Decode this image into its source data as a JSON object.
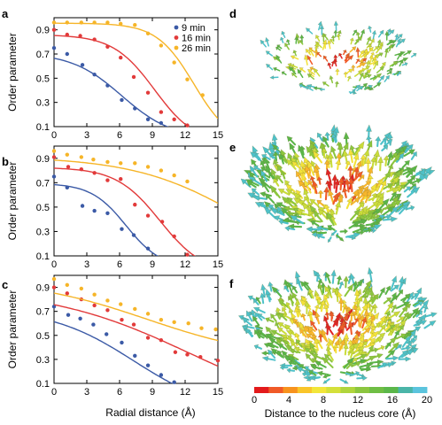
{
  "colors": {
    "blue": "#3b5aa6",
    "red": "#e23a3a",
    "orange": "#f6b528"
  },
  "arrow_colors": [
    "#e02424",
    "#f05a28",
    "#f7b52c",
    "#f2e23a",
    "#c9dc3a",
    "#8cc63e",
    "#5bb548",
    "#4ec1c9"
  ],
  "colorbar": {
    "label": "Distance to the nucleus core (Å)",
    "ticks": [
      "0",
      "4",
      "8",
      "12",
      "16",
      "20"
    ],
    "colors": [
      "#e31a1c",
      "#f05a28",
      "#f7931e",
      "#f9c52a",
      "#f2e63a",
      "#d4e03a",
      "#b0d53c",
      "#8cc63f",
      "#6fbe44",
      "#5bb74a",
      "#4ab5a8",
      "#5bc4dd"
    ]
  },
  "chart_data": [
    {
      "type": "scatter",
      "panel": "a",
      "xlabel": "",
      "ylabel": "Order parameter",
      "xlim": [
        0,
        15
      ],
      "ylim": [
        0.1,
        1.0
      ],
      "xticks": [
        "0",
        "3",
        "6",
        "9",
        "12",
        "15"
      ],
      "yticks": [
        "0.1",
        "0.3",
        "0.5",
        "0.7",
        "0.9"
      ],
      "legend": [
        "9 min",
        "16 min",
        "26 min"
      ],
      "series": [
        {
          "name": "9 min",
          "color": "#3b5aa6",
          "points": [
            [
              0,
              0.75
            ],
            [
              1.2,
              0.7
            ],
            [
              2.6,
              0.61
            ],
            [
              3.7,
              0.53
            ],
            [
              4.9,
              0.44
            ],
            [
              6.2,
              0.32
            ],
            [
              7.4,
              0.25
            ],
            [
              8.6,
              0.16
            ],
            [
              9.8,
              0.13
            ]
          ],
          "curve": {
            "y0": 0.71,
            "ymin": 0.0,
            "x0": 6.2,
            "s": 2.3
          }
        },
        {
          "name": "16 min",
          "color": "#e23a3a",
          "points": [
            [
              0,
              0.9
            ],
            [
              1.2,
              0.86
            ],
            [
              2.4,
              0.85
            ],
            [
              3.7,
              0.82
            ],
            [
              4.9,
              0.76
            ],
            [
              6.1,
              0.67
            ],
            [
              7.3,
              0.51
            ],
            [
              8.6,
              0.38
            ],
            [
              9.8,
              0.22
            ],
            [
              11.0,
              0.16
            ],
            [
              12.2,
              0.11
            ]
          ],
          "curve": {
            "y0": 0.86,
            "ymin": -0.05,
            "x0": 9.2,
            "s": 1.9
          }
        },
        {
          "name": "26 min",
          "color": "#f6b528",
          "points": [
            [
              0,
              0.96
            ],
            [
              1.2,
              0.96
            ],
            [
              2.5,
              0.96
            ],
            [
              3.7,
              0.96
            ],
            [
              4.9,
              0.96
            ],
            [
              6.1,
              0.95
            ],
            [
              7.4,
              0.94
            ],
            [
              8.6,
              0.87
            ],
            [
              9.8,
              0.77
            ],
            [
              11.0,
              0.63
            ],
            [
              12.2,
              0.49
            ],
            [
              13.6,
              0.36
            ]
          ],
          "curve": {
            "y0": 0.955,
            "ymin": -0.05,
            "x0": 12.8,
            "s": 1.7
          }
        }
      ]
    },
    {
      "type": "scatter",
      "panel": "b",
      "xlabel": "",
      "ylabel": "Order parameter",
      "xlim": [
        0,
        15
      ],
      "ylim": [
        0.1,
        1.0
      ],
      "xticks": [
        "0",
        "3",
        "6",
        "9",
        "12",
        "15"
      ],
      "yticks": [
        "0.1",
        "0.3",
        "0.5",
        "0.7",
        "0.9"
      ],
      "series": [
        {
          "name": "9 min",
          "color": "#3b5aa6",
          "points": [
            [
              0,
              0.75
            ],
            [
              1.2,
              0.66
            ],
            [
              2.6,
              0.51
            ],
            [
              3.7,
              0.47
            ],
            [
              4.9,
              0.45
            ],
            [
              6.2,
              0.32
            ],
            [
              7.3,
              0.27
            ],
            [
              8.6,
              0.16
            ]
          ],
          "curve": {
            "y0": 0.695,
            "ymin": 0.0,
            "x0": 6.6,
            "s": 1.6
          }
        },
        {
          "name": "16 min",
          "color": "#e23a3a",
          "points": [
            [
              0,
              0.91
            ],
            [
              1.3,
              0.83
            ],
            [
              2.5,
              0.81
            ],
            [
              3.7,
              0.78
            ],
            [
              4.9,
              0.72
            ],
            [
              6.1,
              0.73
            ],
            [
              7.4,
              0.52
            ],
            [
              8.6,
              0.43
            ],
            [
              9.9,
              0.38
            ],
            [
              11.0,
              0.26
            ],
            [
              12.2,
              0.11
            ]
          ],
          "curve": {
            "y0": 0.825,
            "ymin": -0.05,
            "x0": 9.7,
            "s": 2.0
          }
        },
        {
          "name": "26 min",
          "color": "#f6b528",
          "points": [
            [
              0,
              0.96
            ],
            [
              1.2,
              0.93
            ],
            [
              2.5,
              0.91
            ],
            [
              3.6,
              0.89
            ],
            [
              4.9,
              0.87
            ],
            [
              6.1,
              0.86
            ],
            [
              7.4,
              0.86
            ],
            [
              8.6,
              0.83
            ],
            [
              9.8,
              0.8
            ],
            [
              11.0,
              0.76
            ],
            [
              12.2,
              0.71
            ]
          ],
          "curve": {
            "y0": 0.915,
            "ymin": -0.1,
            "x0": 17.5,
            "s": 5.0
          }
        }
      ]
    },
    {
      "type": "scatter",
      "panel": "c",
      "xlabel": "Radial distance (Å)",
      "ylabel": "Order parameter",
      "xlim": [
        0,
        15
      ],
      "ylim": [
        0.1,
        1.0
      ],
      "xticks": [
        "0",
        "3",
        "6",
        "9",
        "12",
        "15"
      ],
      "yticks": [
        "0.1",
        "0.3",
        "0.5",
        "0.7",
        "0.9"
      ],
      "series": [
        {
          "name": "9 min",
          "color": "#3b5aa6",
          "points": [
            [
              0,
              0.74
            ],
            [
              1.3,
              0.67
            ],
            [
              2.4,
              0.64
            ],
            [
              3.6,
              0.59
            ],
            [
              4.8,
              0.51
            ],
            [
              6.2,
              0.44
            ],
            [
              7.4,
              0.33
            ],
            [
              8.6,
              0.25
            ],
            [
              9.8,
              0.17
            ],
            [
              11.0,
              0.11
            ]
          ],
          "curve": {
            "y0": 0.725,
            "ymin": -0.15,
            "x0": 7.3,
            "s": 3.8
          }
        },
        {
          "name": "16 min",
          "color": "#e23a3a",
          "points": [
            [
              0,
              0.9
            ],
            [
              1.2,
              0.85
            ],
            [
              2.5,
              0.8
            ],
            [
              3.7,
              0.75
            ],
            [
              4.9,
              0.71
            ],
            [
              6.2,
              0.63
            ],
            [
              7.3,
              0.59
            ],
            [
              8.6,
              0.48
            ],
            [
              9.8,
              0.46
            ],
            [
              11.1,
              0.36
            ],
            [
              12.2,
              0.34
            ],
            [
              13.4,
              0.32
            ],
            [
              15.0,
              0.29
            ]
          ],
          "curve": {
            "y0": 0.895,
            "ymin": -0.2,
            "x0": 12.5,
            "s": 6.5
          }
        },
        {
          "name": "26 min",
          "color": "#f6b528",
          "points": [
            [
              0,
              0.97
            ],
            [
              1.2,
              0.92
            ],
            [
              2.5,
              0.89
            ],
            [
              3.7,
              0.84
            ],
            [
              4.9,
              0.79
            ],
            [
              6.1,
              0.76
            ],
            [
              7.4,
              0.72
            ],
            [
              8.6,
              0.68
            ],
            [
              9.8,
              0.63
            ],
            [
              11.0,
              0.61
            ],
            [
              12.3,
              0.6
            ],
            [
              13.5,
              0.56
            ],
            [
              14.8,
              0.55
            ]
          ],
          "curve": {
            "y0": 0.97,
            "ymin": 0.3,
            "x0": 8.5,
            "s": 5.5
          }
        }
      ]
    }
  ],
  "panel_letters": {
    "a": "a",
    "b": "b",
    "c": "c",
    "d": "d",
    "e": "e",
    "f": "f"
  }
}
